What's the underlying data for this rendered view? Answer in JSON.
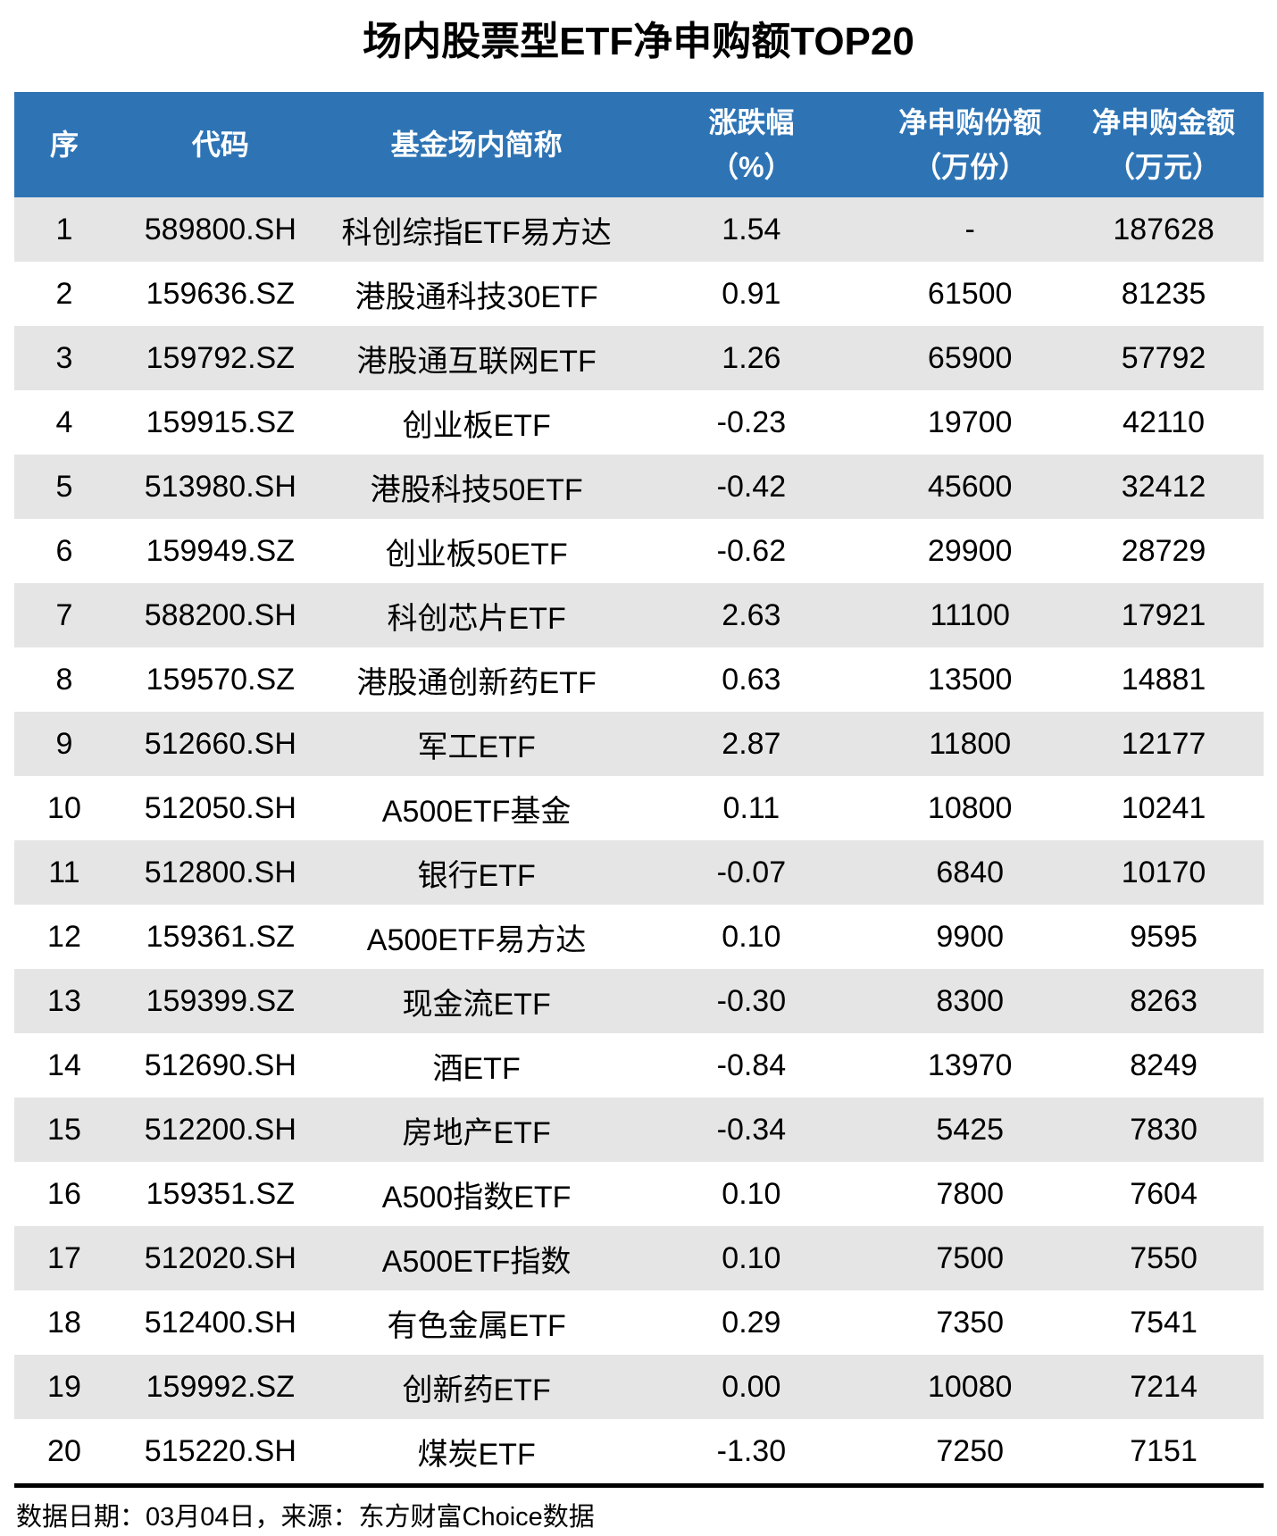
{
  "title": "场内股票型ETF净申购额TOP20",
  "colors": {
    "header_bg": "#2E74B5",
    "header_text": "#FFFFFF",
    "stripe_bg": "#E5E5E5",
    "body_bg": "#FFFFFF",
    "text": "#000000"
  },
  "chart_data": {
    "type": "table",
    "title": "场内股票型ETF净申购额TOP20",
    "columns": [
      "序",
      "代码",
      "基金场内简称",
      "涨跌幅（%）",
      "净申购份额（万份）",
      "净申购金额（万元）"
    ],
    "header_lines": [
      [
        "序",
        ""
      ],
      [
        "代码",
        ""
      ],
      [
        "基金场内简称",
        ""
      ],
      [
        "涨跌幅",
        "（%）"
      ],
      [
        "净申购份额",
        "（万份）"
      ],
      [
        "净申购金额",
        "（万元）"
      ]
    ],
    "rows": [
      [
        "1",
        "589800.SH",
        "科创综指ETF易方达",
        "1.54",
        "-",
        "187628"
      ],
      [
        "2",
        "159636.SZ",
        "港股通科技30ETF",
        "0.91",
        "61500",
        "81235"
      ],
      [
        "3",
        "159792.SZ",
        "港股通互联网ETF",
        "1.26",
        "65900",
        "57792"
      ],
      [
        "4",
        "159915.SZ",
        "创业板ETF",
        "-0.23",
        "19700",
        "42110"
      ],
      [
        "5",
        "513980.SH",
        "港股科技50ETF",
        "-0.42",
        "45600",
        "32412"
      ],
      [
        "6",
        "159949.SZ",
        "创业板50ETF",
        "-0.62",
        "29900",
        "28729"
      ],
      [
        "7",
        "588200.SH",
        "科创芯片ETF",
        "2.63",
        "11100",
        "17921"
      ],
      [
        "8",
        "159570.SZ",
        "港股通创新药ETF",
        "0.63",
        "13500",
        "14881"
      ],
      [
        "9",
        "512660.SH",
        "军工ETF",
        "2.87",
        "11800",
        "12177"
      ],
      [
        "10",
        "512050.SH",
        "A500ETF基金",
        "0.11",
        "10800",
        "10241"
      ],
      [
        "11",
        "512800.SH",
        "银行ETF",
        "-0.07",
        "6840",
        "10170"
      ],
      [
        "12",
        "159361.SZ",
        "A500ETF易方达",
        "0.10",
        "9900",
        "9595"
      ],
      [
        "13",
        "159399.SZ",
        "现金流ETF",
        "-0.30",
        "8300",
        "8263"
      ],
      [
        "14",
        "512690.SH",
        "酒ETF",
        "-0.84",
        "13970",
        "8249"
      ],
      [
        "15",
        "512200.SH",
        "房地产ETF",
        "-0.34",
        "5425",
        "7830"
      ],
      [
        "16",
        "159351.SZ",
        "A500指数ETF",
        "0.10",
        "7800",
        "7604"
      ],
      [
        "17",
        "512020.SH",
        "A500ETF指数",
        "0.10",
        "7500",
        "7550"
      ],
      [
        "18",
        "512400.SH",
        "有色金属ETF",
        "0.29",
        "7350",
        "7541"
      ],
      [
        "19",
        "159992.SZ",
        "创新药ETF",
        "0.00",
        "10080",
        "7214"
      ],
      [
        "20",
        "515220.SH",
        "煤炭ETF",
        "-1.30",
        "7250",
        "7151"
      ]
    ]
  },
  "footer": {
    "text": "数据日期：03月04日，来源：东方财富Choice数据"
  }
}
